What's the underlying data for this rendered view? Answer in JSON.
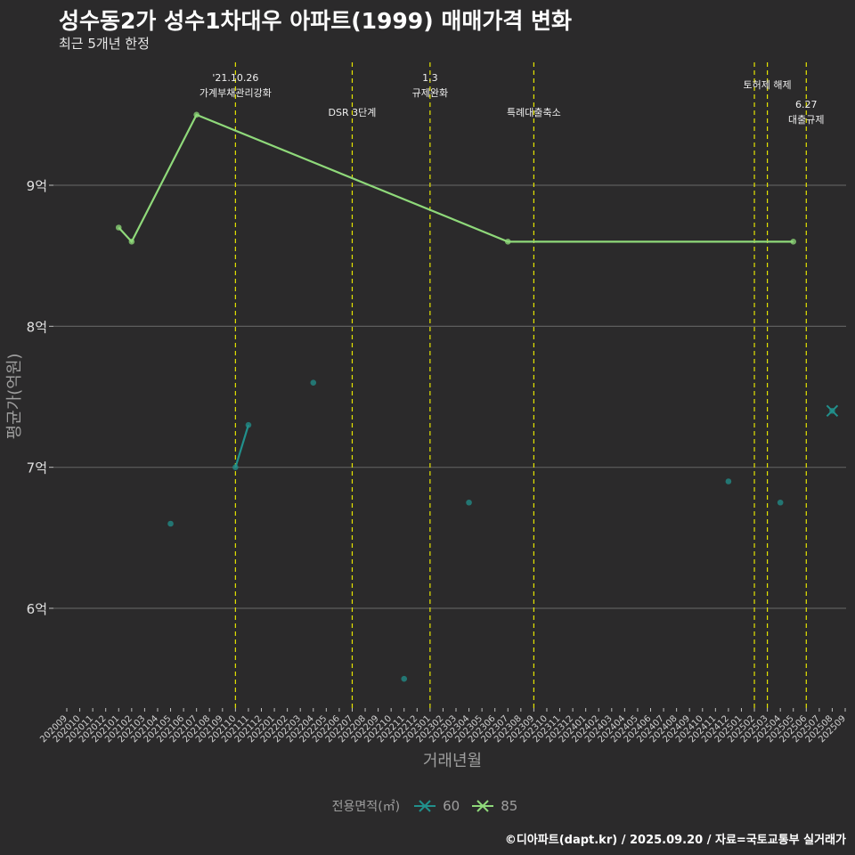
{
  "chart_data": {
    "type": "line",
    "title": "성수동2가 성수1차대우 아파트(1999) 매매가격 변화",
    "subtitle": "최근 5개년 한정",
    "xlabel": "거래년월",
    "ylabel": "평균가(억원)",
    "categories": [
      "202009",
      "202010",
      "202011",
      "202012",
      "202101",
      "202102",
      "202103",
      "202104",
      "202105",
      "202106",
      "202107",
      "202108",
      "202109",
      "202110",
      "202111",
      "202112",
      "202201",
      "202202",
      "202203",
      "202204",
      "202205",
      "202206",
      "202207",
      "202208",
      "202209",
      "202210",
      "202211",
      "202212",
      "202301",
      "202302",
      "202303",
      "202304",
      "202305",
      "202306",
      "202307",
      "202308",
      "202309",
      "202310",
      "202311",
      "202312",
      "202401",
      "202402",
      "202403",
      "202404",
      "202405",
      "202406",
      "202407",
      "202408",
      "202409",
      "202410",
      "202411",
      "202412",
      "202501",
      "202502",
      "202503",
      "202504",
      "202505",
      "202506",
      "202507",
      "202508",
      "202509"
    ],
    "y_ticks": [
      {
        "value": 6,
        "label": "6억"
      },
      {
        "value": 7,
        "label": "7억"
      },
      {
        "value": 8,
        "label": "8억"
      },
      {
        "value": 9,
        "label": "9억"
      }
    ],
    "ylim": [
      5.3,
      10.0
    ],
    "series": [
      {
        "name": "60",
        "color": "#21908c",
        "lines": [
          [
            {
              "x": "202110",
              "y": 7.0
            },
            {
              "x": "202111",
              "y": 7.3
            }
          ]
        ],
        "points": [
          {
            "x": "202105",
            "y": 6.6
          },
          {
            "x": "202110",
            "y": 7.0
          },
          {
            "x": "202111",
            "y": 7.3
          },
          {
            "x": "202204",
            "y": 7.6
          },
          {
            "x": "202211",
            "y": 5.5
          },
          {
            "x": "202304",
            "y": 6.75
          },
          {
            "x": "202412",
            "y": 6.9
          },
          {
            "x": "202504",
            "y": 6.75
          },
          {
            "x": "202508",
            "y": 7.4
          }
        ],
        "marker_x": [
          {
            "x": "202508",
            "y": 7.4
          }
        ]
      },
      {
        "name": "85",
        "color": "#8fd97a",
        "lines": [
          [
            {
              "x": "202101",
              "y": 8.7
            },
            {
              "x": "202102",
              "y": 8.6
            },
            {
              "x": "202107",
              "y": 9.5
            },
            {
              "x": "202307",
              "y": 8.6
            },
            {
              "x": "202505",
              "y": 8.6
            }
          ]
        ],
        "points": [
          {
            "x": "202101",
            "y": 8.7
          },
          {
            "x": "202102",
            "y": 8.6
          },
          {
            "x": "202107",
            "y": 9.5
          },
          {
            "x": "202307",
            "y": 8.6
          },
          {
            "x": "202505",
            "y": 8.6
          }
        ]
      }
    ],
    "event_lines": [
      {
        "x": "202110",
        "lines": [
          "'21.10.26",
          "가계부채관리강화"
        ],
        "level": 0
      },
      {
        "x": "202207",
        "lines": [
          "DSR 3단계"
        ],
        "level": 2
      },
      {
        "x": "202301",
        "lines": [
          "1.3",
          "규제완화"
        ],
        "level": 0
      },
      {
        "x": "202309",
        "lines": [
          "특례대출축소"
        ],
        "level": 2
      },
      {
        "x": "202502",
        "lines": [],
        "level": 1
      },
      {
        "x": "202503",
        "lines": [
          "토허제 해제"
        ],
        "level": 1
      },
      {
        "x": "202506",
        "lines": [
          "6.27",
          "대출규제"
        ],
        "level": 3
      }
    ],
    "legend": {
      "title": "전용면적(㎡)",
      "position": "bottom"
    },
    "grid": true
  },
  "footer": "©디아파트(dapt.kr) / 2025.09.20 / 자료=국토교통부 실거래가"
}
